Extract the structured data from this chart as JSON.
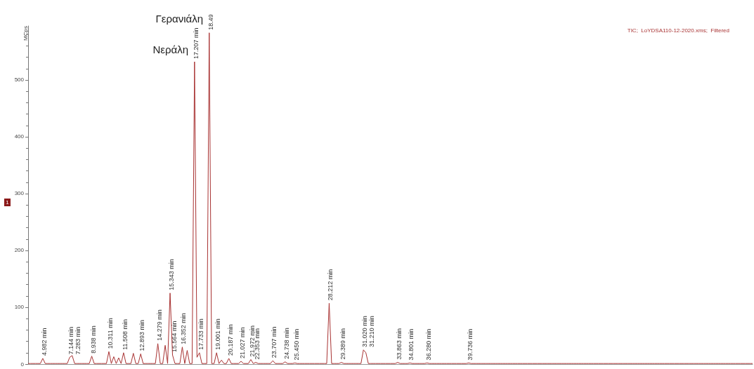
{
  "chart_data": {
    "type": "line",
    "title": "TIC;  LoYDSA110-12-2020.xms;  Filtered",
    "ylabel": "MCps",
    "annotations": [
      "Νεράλη",
      "Γερανιάλη",
      "1",
      {
        "text": "4.982 min",
        "y": 10
      },
      {
        "text": "7.144 min",
        "y": 12
      },
      "7.283 min",
      {
        "text": "8.938 min",
        "y": 14
      },
      {
        "text": "10.311 min",
        "y": 22
      },
      {
        "text": "11.508 min",
        "y": 20
      },
      {
        "text": "12.893 min",
        "y": 18
      },
      {
        "text": "14.279 min",
        "y": 36
      },
      {
        "text": "15.343 min",
        "y": 125
      },
      {
        "text": "15.564 min",
        "y": 16
      },
      {
        "text": "16.352 min",
        "y": 30
      },
      {
        "text": "17.207 min",
        "y": 532
      },
      {
        "text": "17.733 min",
        "y": 20
      },
      {
        "text": "18.49",
        "y": 583
      },
      {
        "text": "19.001 min",
        "y": 20
      },
      {
        "text": "20.187 min",
        "y": 10
      },
      {
        "text": "21.027 min",
        "y": 5
      },
      {
        "text": "21.972 min",
        "y": 8
      },
      {
        "text": "22.353 min",
        "y": 3
      },
      {
        "text": "23.707 min",
        "y": 6
      },
      {
        "text": "24.738 min",
        "y": 4
      },
      {
        "text": "25.450 min",
        "y": 2
      },
      {
        "text": "28.212 min",
        "y": 107
      },
      {
        "text": "29.389 min",
        "y": 3
      },
      {
        "text": "31.020 min",
        "y": 25
      },
      "31.210 min",
      {
        "text": "33.863 min",
        "y": 3
      },
      {
        "text": "34.801 min",
        "y": 2
      },
      {
        "text": "36.280 min",
        "y": 2
      },
      {
        "text": "39.736 min",
        "y": 2
      }
    ],
    "ylim": [
      0,
      595
    ],
    "yticks": [
      0,
      100,
      200,
      300,
      400,
      500
    ],
    "tick_labels": "y",
    "line_style": "solid",
    "categories": [
      null,
      null,
      null,
      null,
      null,
      null,
      null,
      null,
      null,
      null,
      null,
      null,
      null,
      null,
      null,
      null,
      null,
      null,
      null,
      null,
      null,
      null,
      null,
      null,
      null,
      null,
      null,
      null,
      null,
      null,
      null,
      null,
      null,
      null,
      null,
      null,
      null,
      null,
      null,
      null,
      null,
      null,
      null,
      null,
      null,
      null,
      null,
      null,
      null,
      null,
      null,
      null,
      null,
      null,
      null,
      null,
      null,
      null,
      null,
      null,
      null,
      null,
      null,
      null,
      null,
      null,
      null,
      null,
      null,
      null,
      null,
      null,
      null,
      null,
      null,
      null,
      null,
      null,
      null,
      null,
      null,
      null,
      null,
      null,
      null,
      null,
      null,
      null,
      null,
      null,
      null,
      null,
      null,
      null,
      null,
      null,
      null,
      null,
      null,
      null,
      null,
      null,
      null,
      null,
      null,
      null,
      null,
      null,
      null,
      null,
      null,
      null,
      null,
      null,
      null,
      null,
      null,
      null,
      null,
      null,
      null,
      null,
      null,
      null,
      null,
      null,
      null,
      null,
      null,
      null,
      null,
      null,
      null,
      null,
      null,
      null,
      null,
      null,
      null,
      null,
      null,
      null,
      null,
      null,
      null,
      null,
      null,
      null,
      null,
      null,
      null,
      null,
      null,
      null,
      null,
      null,
      null,
      null,
      null,
      null,
      null,
      null,
      null,
      null,
      null,
      null,
      null,
      null,
      null,
      null,
      null,
      null,
      null,
      null,
      null,
      null,
      null,
      null,
      null,
      null,
      null,
      null,
      null,
      null,
      null,
      null,
      null,
      null,
      null,
      null,
      null,
      null,
      null,
      null,
      null,
      null,
      null,
      null,
      null,
      null,
      null,
      null,
      null,
      null,
      null,
      null,
      null,
      null,
      null,
      null,
      null,
      null,
      null,
      null,
      null,
      null,
      null,
      null,
      null,
      null,
      null,
      null,
      null,
      null,
      null,
      null,
      null,
      null,
      null,
      null,
      null,
      null,
      null,
      null,
      null,
      null,
      null,
      null,
      null,
      null,
      null,
      null,
      null,
      null,
      null,
      null,
      null,
      null,
      null,
      null,
      null,
      null,
      null,
      null,
      null,
      null,
      null,
      null,
      null,
      null,
      null,
      null,
      null,
      null,
      null,
      null,
      null,
      null,
      null,
      null,
      null,
      null,
      null,
      null,
      null,
      null,
      null,
      null,
      null,
      null,
      null,
      null,
      null,
      null,
      null,
      null,
      null,
      null,
      null,
      null,
      null,
      null,
      null,
      null,
      null,
      null,
      null
    ],
    "series": [
      {
        "color": "#a83232",
        "values": [
          1,
          1,
          1,
          1,
          1,
          1,
          10,
          1,
          1,
          1,
          1,
          1,
          1,
          1,
          1,
          1,
          1,
          12,
          15,
          1,
          1,
          1,
          1,
          1,
          1,
          1,
          14,
          1,
          1,
          1,
          1,
          1,
          1,
          22,
          1,
          13,
          1,
          11,
          1,
          20,
          1,
          1,
          1,
          19,
          1,
          1,
          18,
          1,
          1,
          1,
          1,
          1,
          1,
          36,
          1,
          1,
          33,
          1,
          125,
          16,
          1,
          1,
          1,
          30,
          1,
          24,
          1,
          1,
          532,
          12,
          20,
          1,
          1,
          1,
          583,
          1,
          1,
          20,
          1,
          7,
          1,
          1,
          10,
          1,
          1,
          1,
          1,
          5,
          1,
          1,
          1,
          8,
          1,
          3,
          1,
          1,
          1,
          1,
          1,
          1,
          6,
          1,
          1,
          1,
          1,
          4,
          1,
          1,
          1,
          2,
          1,
          1,
          1,
          1,
          1,
          1,
          1,
          1,
          1,
          1,
          1,
          1,
          1,
          107,
          1,
          1,
          1,
          1,
          3,
          1,
          1,
          1,
          1,
          1,
          1,
          1,
          1,
          25,
          20,
          1,
          1,
          1,
          1,
          1,
          1,
          1,
          1,
          1,
          1,
          1,
          1,
          3,
          1,
          1,
          1,
          1,
          2,
          1,
          1,
          1,
          1,
          1,
          1,
          2,
          1,
          1,
          1,
          1,
          1,
          1,
          1,
          1,
          1,
          1,
          1,
          1,
          1,
          1,
          1,
          1,
          2,
          1,
          1,
          1,
          1,
          1,
          1,
          1,
          1,
          1,
          1,
          1,
          1,
          1,
          1,
          1,
          1,
          1,
          1,
          1,
          1,
          1,
          1,
          1,
          1,
          1,
          1,
          1,
          1,
          1,
          1,
          1,
          1,
          1,
          1,
          1,
          1,
          1,
          1,
          1,
          1,
          1,
          1,
          1,
          1,
          1,
          1,
          1,
          1,
          1,
          1,
          1,
          1,
          1,
          1,
          1,
          1,
          1,
          1,
          1,
          1,
          1,
          1,
          1,
          1,
          1,
          1,
          1,
          1,
          1,
          1,
          1,
          1,
          1,
          1,
          1,
          1,
          1,
          1,
          1,
          1,
          1,
          1,
          1,
          1,
          1,
          1,
          1,
          1,
          1,
          1,
          1,
          1,
          1,
          1,
          1,
          1,
          1,
          1,
          1,
          1,
          1,
          1,
          1,
          1,
          1,
          1,
          1,
          1,
          1,
          1,
          1,
          1,
          1,
          1,
          1,
          1
        ]
      }
    ]
  }
}
